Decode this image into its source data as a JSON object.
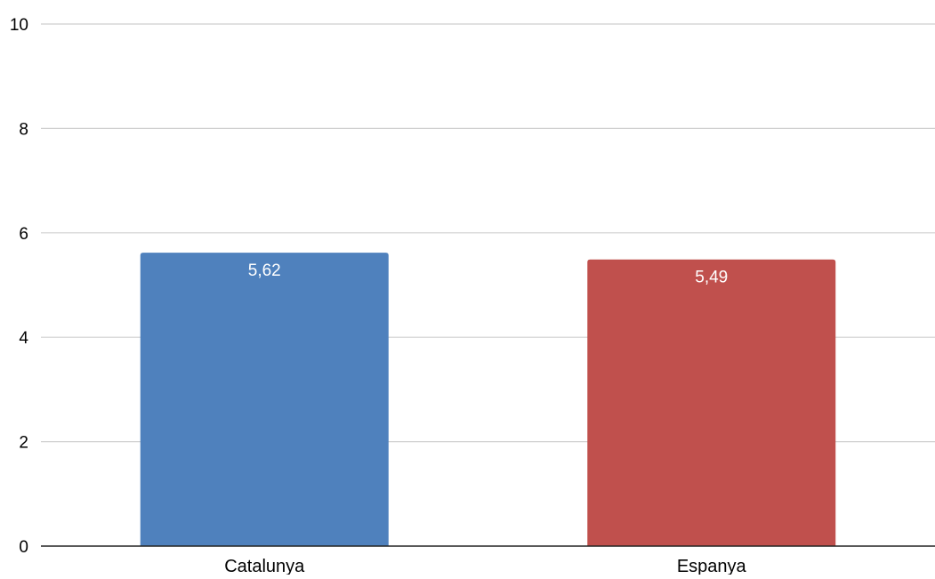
{
  "chart_data": {
    "type": "bar",
    "categories": [
      "Catalunya",
      "Espanya"
    ],
    "values": [
      5.62,
      5.49
    ],
    "data_labels": [
      "5,62",
      "5,49"
    ],
    "colors": [
      "#4f81bd",
      "#c0504d"
    ],
    "ylim": [
      0,
      10
    ],
    "yticks": [
      0,
      2,
      4,
      6,
      8,
      10
    ],
    "ytick_labels": [
      "0",
      "2",
      "4",
      "6",
      "8",
      "10"
    ],
    "title": "",
    "xlabel": "",
    "ylabel": "",
    "grid": true,
    "legend": "none"
  }
}
